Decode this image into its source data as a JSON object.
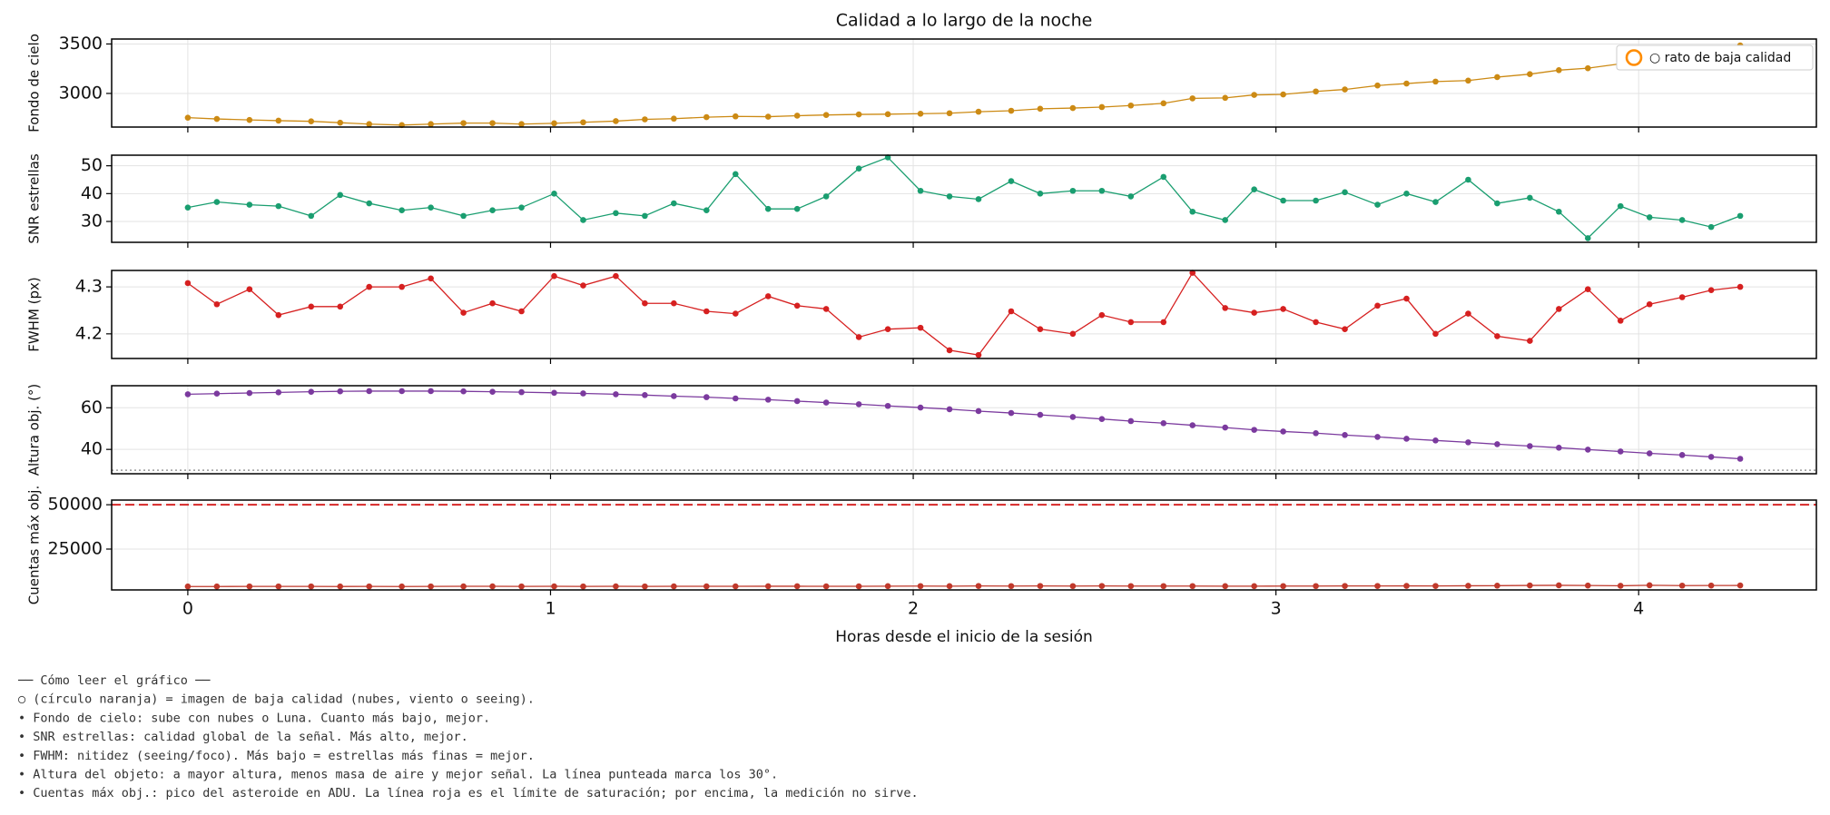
{
  "title": "Calidad a lo largo de la noche",
  "xlabel": "Horas desde el inicio de la sesión",
  "legend": {
    "label": "○ rato de baja calidad",
    "color": "#ff8c00",
    "loc": "upper right"
  },
  "notes": [
    "── Cómo leer el gráfico ──",
    "○ (círculo naranja) = imagen de baja calidad (nubes, viento o seeing).",
    "• Fondo de cielo: sube con nubes o Luna. Cuanto más bajo, mejor.",
    "• SNR estrellas: calidad global de la señal. Más alto, mejor.",
    "• FWHM: nitidez (seeing/foco). Más bajo = estrellas más finas = mejor.",
    "• Altura del objeto: a mayor altura, menos masa de aire y mejor señal. La línea punteada marca los 30°.",
    "• Cuentas máx obj.: pico del asteroide en ADU. La línea roja es el límite de saturación; por encima, la medición no sirve."
  ],
  "chart_data": [
    {
      "type": "line",
      "ylabel": "Fondo de cielo",
      "color": "#cc8a14",
      "grid": true,
      "x": [
        0,
        0.08,
        0.17,
        0.25,
        0.34,
        0.42,
        0.5,
        0.59,
        0.67,
        0.76,
        0.84,
        0.92,
        1.01,
        1.09,
        1.18,
        1.26,
        1.34,
        1.43,
        1.51,
        1.6,
        1.68,
        1.76,
        1.85,
        1.93,
        2.02,
        2.1,
        2.18,
        2.27,
        2.35,
        2.44,
        2.52,
        2.6,
        2.69,
        2.77,
        2.86,
        2.94,
        3.02,
        3.11,
        3.19,
        3.28,
        3.36,
        3.44,
        3.53,
        3.61,
        3.7,
        3.78,
        3.86,
        3.95,
        4.03,
        4.12,
        4.2,
        4.28
      ],
      "values": [
        2755,
        2742,
        2732,
        2725,
        2718,
        2704,
        2690,
        2680,
        2690,
        2700,
        2700,
        2690,
        2698,
        2708,
        2720,
        2738,
        2745,
        2760,
        2768,
        2765,
        2775,
        2782,
        2788,
        2790,
        2795,
        2800,
        2815,
        2825,
        2845,
        2852,
        2862,
        2878,
        2900,
        2950,
        2955,
        2985,
        2990,
        3020,
        3040,
        3080,
        3100,
        3120,
        3130,
        3165,
        3195,
        3235,
        3255,
        3300,
        3325,
        3370,
        3430,
        3485
      ],
      "xlim": [
        -0.21,
        4.49
      ],
      "xticks": [
        0,
        1,
        2,
        3,
        4
      ],
      "ylim": [
        2660,
        3550
      ],
      "yticks": [
        3000,
        3500
      ]
    },
    {
      "type": "line",
      "ylabel": "SNR estrellas",
      "color": "#1a9e70",
      "grid": true,
      "x": [
        0,
        0.08,
        0.17,
        0.25,
        0.34,
        0.42,
        0.5,
        0.59,
        0.67,
        0.76,
        0.84,
        0.92,
        1.01,
        1.09,
        1.18,
        1.26,
        1.34,
        1.43,
        1.51,
        1.6,
        1.68,
        1.76,
        1.85,
        1.93,
        2.02,
        2.1,
        2.18,
        2.27,
        2.35,
        2.44,
        2.52,
        2.6,
        2.69,
        2.77,
        2.86,
        2.94,
        3.02,
        3.11,
        3.19,
        3.28,
        3.36,
        3.44,
        3.53,
        3.61,
        3.7,
        3.78,
        3.86,
        3.95,
        4.03,
        4.12,
        4.2,
        4.28
      ],
      "values": [
        35,
        37,
        36,
        35.5,
        32,
        39.5,
        36.5,
        34,
        35,
        32,
        34,
        35,
        40,
        30.5,
        33,
        32,
        36.5,
        34,
        47,
        34.5,
        34.5,
        39,
        49,
        53,
        41,
        39,
        38,
        44.5,
        40,
        41,
        41,
        39,
        46,
        33.5,
        30.5,
        41.5,
        37.5,
        37.5,
        40.5,
        36,
        40,
        37,
        45,
        36.5,
        38.5,
        33.5,
        24,
        35.5,
        31.5,
        30.5,
        28,
        32
      ],
      "xlim": [
        -0.21,
        4.49
      ],
      "xticks": [
        0,
        1,
        2,
        3,
        4
      ],
      "ylim": [
        22.5,
        53.8
      ],
      "yticks": [
        30,
        40,
        50
      ]
    },
    {
      "type": "line",
      "ylabel": "FWHM (px)",
      "color": "#d62020",
      "grid": true,
      "x": [
        0,
        0.08,
        0.17,
        0.25,
        0.34,
        0.42,
        0.5,
        0.59,
        0.67,
        0.76,
        0.84,
        0.92,
        1.01,
        1.09,
        1.18,
        1.26,
        1.34,
        1.43,
        1.51,
        1.6,
        1.68,
        1.76,
        1.85,
        1.93,
        2.02,
        2.1,
        2.18,
        2.27,
        2.35,
        2.44,
        2.52,
        2.6,
        2.69,
        2.77,
        2.86,
        2.94,
        3.02,
        3.11,
        3.19,
        3.28,
        3.36,
        3.44,
        3.53,
        3.61,
        3.7,
        3.78,
        3.86,
        3.95,
        4.03,
        4.12,
        4.2,
        4.28
      ],
      "values": [
        4.308,
        4.263,
        4.295,
        4.24,
        4.258,
        4.258,
        4.3,
        4.3,
        4.318,
        4.245,
        4.265,
        4.248,
        4.323,
        4.303,
        4.323,
        4.265,
        4.265,
        4.248,
        4.243,
        4.28,
        4.26,
        4.253,
        4.193,
        4.21,
        4.213,
        4.165,
        4.155,
        4.248,
        4.21,
        4.2,
        4.24,
        4.225,
        4.225,
        4.33,
        4.255,
        4.245,
        4.253,
        4.225,
        4.21,
        4.26,
        4.275,
        4.2,
        4.243,
        4.195,
        4.185,
        4.253,
        4.295,
        4.228,
        4.263,
        4.278,
        4.293,
        4.3
      ],
      "xlim": [
        -0.21,
        4.49
      ],
      "xticks": [
        0,
        1,
        2,
        3,
        4
      ],
      "ylim": [
        4.1475,
        4.335
      ],
      "yticks": [
        4.2,
        4.3
      ]
    },
    {
      "type": "line",
      "ylabel": "Altura obj. (°)",
      "color": "#7b3a9e",
      "grid": true,
      "x": [
        0,
        0.08,
        0.17,
        0.25,
        0.34,
        0.42,
        0.5,
        0.59,
        0.67,
        0.76,
        0.84,
        0.92,
        1.01,
        1.09,
        1.18,
        1.26,
        1.34,
        1.43,
        1.51,
        1.6,
        1.68,
        1.76,
        1.85,
        1.93,
        2.02,
        2.1,
        2.18,
        2.27,
        2.35,
        2.44,
        2.52,
        2.6,
        2.69,
        2.77,
        2.86,
        2.94,
        3.02,
        3.11,
        3.19,
        3.28,
        3.36,
        3.44,
        3.53,
        3.61,
        3.7,
        3.78,
        3.86,
        3.95,
        4.03,
        4.12,
        4.2,
        4.28
      ],
      "values": [
        66.5,
        66.8,
        67.1,
        67.4,
        67.7,
        67.9,
        68.0,
        68.0,
        68.0,
        67.9,
        67.7,
        67.5,
        67.2,
        66.9,
        66.5,
        66.1,
        65.6,
        65.1,
        64.5,
        63.9,
        63.2,
        62.5,
        61.7,
        60.9,
        60.1,
        59.3,
        58.4,
        57.5,
        56.6,
        55.6,
        54.6,
        53.6,
        52.6,
        51.6,
        50.5,
        49.4,
        48.6,
        47.8,
        46.9,
        46.0,
        45.1,
        44.3,
        43.4,
        42.5,
        41.6,
        40.8,
        39.9,
        39.0,
        38.1,
        37.3,
        36.4,
        35.5
      ],
      "hlines": [
        {
          "value": 30,
          "color": "#999999",
          "style": "dotted"
        }
      ],
      "xlim": [
        -0.21,
        4.49
      ],
      "xticks": [
        0,
        1,
        2,
        3,
        4
      ],
      "ylim": [
        28.3,
        70.6
      ],
      "yticks": [
        40,
        60
      ]
    },
    {
      "type": "line",
      "ylabel": "Cuentas máx obj.",
      "color": "#c0392b",
      "grid": true,
      "x": [
        0,
        0.08,
        0.17,
        0.25,
        0.34,
        0.42,
        0.5,
        0.59,
        0.67,
        0.76,
        0.84,
        0.92,
        1.01,
        1.09,
        1.18,
        1.26,
        1.34,
        1.43,
        1.51,
        1.6,
        1.68,
        1.76,
        1.85,
        1.93,
        2.02,
        2.1,
        2.18,
        2.27,
        2.35,
        2.44,
        2.52,
        2.6,
        2.69,
        2.77,
        2.86,
        2.94,
        3.02,
        3.11,
        3.19,
        3.28,
        3.36,
        3.44,
        3.53,
        3.61,
        3.7,
        3.78,
        3.86,
        3.95,
        4.03,
        4.12,
        4.2,
        4.28
      ],
      "values": [
        3900,
        3900,
        3950,
        3950,
        3950,
        3900,
        3950,
        3900,
        3950,
        4000,
        4000,
        3950,
        4000,
        3950,
        4000,
        3950,
        4000,
        4000,
        4000,
        4050,
        4050,
        4000,
        4000,
        4100,
        4150,
        4100,
        4200,
        4150,
        4200,
        4150,
        4200,
        4150,
        4150,
        4150,
        4100,
        4100,
        4150,
        4150,
        4200,
        4200,
        4250,
        4200,
        4300,
        4350,
        4500,
        4550,
        4450,
        4300,
        4600,
        4400,
        4450,
        4500
      ],
      "hlines": [
        {
          "value": 50000,
          "color": "#d62728",
          "style": "dashed"
        }
      ],
      "xlim": [
        -0.21,
        4.49
      ],
      "xticks": [
        0,
        1,
        2,
        3,
        4
      ],
      "ylim": [
        1970,
        52630
      ],
      "yticks": [
        25000,
        50000
      ],
      "show_xtick_labels": true
    }
  ]
}
